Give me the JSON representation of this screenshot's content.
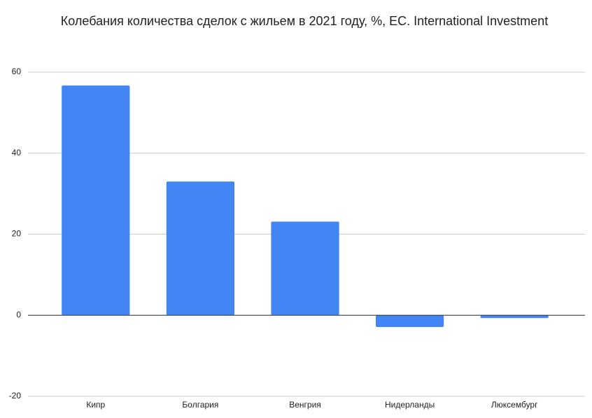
{
  "chart_data": {
    "type": "bar",
    "title": "Колебания количества сделок с жильем в 2021 году, %, ЕС.  International Investment",
    "categories": [
      "Кипр",
      "Болгария",
      "Венгрия",
      "Нидерланды",
      "Люксембург"
    ],
    "values": [
      56.7,
      33.0,
      23.1,
      -2.9,
      -0.7
    ],
    "color": "#4285f4",
    "ylim": [
      -20,
      60
    ],
    "yticks": [
      -20,
      0,
      20,
      40,
      60
    ],
    "grid": true
  }
}
